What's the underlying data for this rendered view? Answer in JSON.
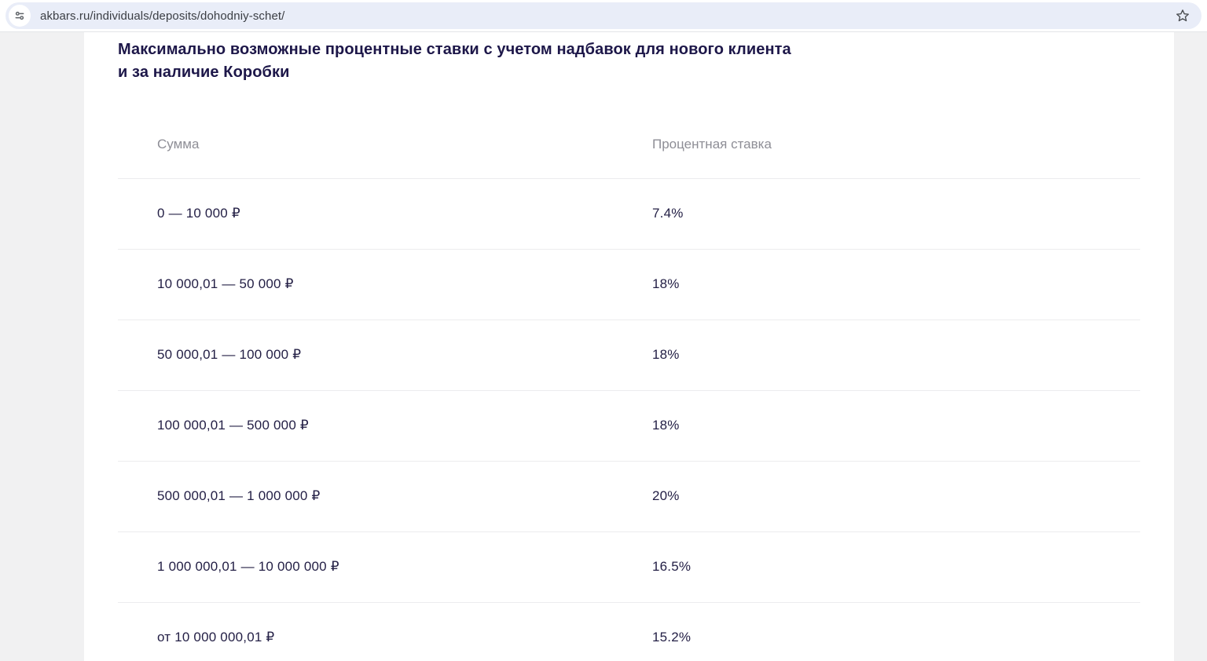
{
  "browser": {
    "url": "akbars.ru/individuals/deposits/dohodniy-schet/"
  },
  "page": {
    "heading_line1": "Максимально возможные процентные ставки с учетом надбавок для нового клиента",
    "heading_line2": "и за наличие Коробки"
  },
  "table": {
    "columns": [
      "Сумма",
      "Процентная ставка"
    ],
    "rows": [
      {
        "amount": "0 — 10 000 ₽",
        "rate": "7.4%"
      },
      {
        "amount": "10 000,01 — 50 000 ₽",
        "rate": "18%"
      },
      {
        "amount": "50 000,01 — 100 000 ₽",
        "rate": "18%"
      },
      {
        "amount": "100 000,01 — 500 000 ₽",
        "rate": "18%"
      },
      {
        "amount": "500 000,01 — 1 000 000 ₽",
        "rate": "20%"
      },
      {
        "amount": "1 000 000,01 — 10 000 000 ₽",
        "rate": "16.5%"
      },
      {
        "amount": "от 10 000 000,01 ₽",
        "rate": "15.2%"
      }
    ]
  },
  "colors": {
    "heading_text": "#1d1749",
    "row_text": "#242046",
    "header_text": "#8e8e96",
    "divider": "#ececee",
    "url_pill_bg": "#e9edf8",
    "page_gutter_bg": "#f1f1f2",
    "icon_gray": "#5f6368"
  }
}
